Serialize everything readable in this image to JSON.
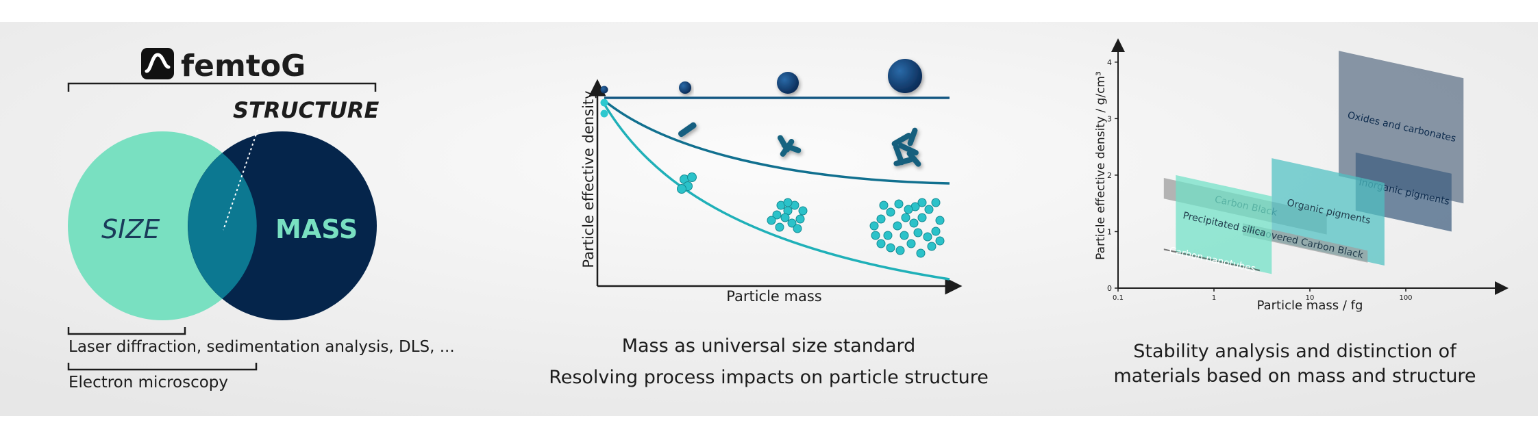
{
  "brand": {
    "name": "femtoG",
    "logo": "femtog-wave-logo"
  },
  "venn": {
    "top_label": "STRUCTURE",
    "left_label": "SIZE",
    "right_label": "MASS",
    "method_1": "Laser diffraction, sedimentation analysis, DLS, ...",
    "method_2": "Electron microscopy",
    "colors": {
      "size": "#79e0c1",
      "mass": "#05254b",
      "overlap": "#0c7891"
    }
  },
  "schematic": {
    "xlabel": "Particle mass",
    "ylabel": "Particle effective density",
    "caption_1": "Mass as universal size standard",
    "caption_2": "Resolving process impacts on particle structure",
    "curves": [
      "spheres",
      "rods",
      "fractal-aggregates"
    ]
  },
  "chart_data": {
    "type": "area",
    "xlabel": "Particle mass / fg",
    "ylabel": "Particle effective density / g/cm³",
    "x_scale": "log",
    "xlim": [
      0.1,
      1000
    ],
    "ylim": [
      0,
      4.3
    ],
    "x_ticks": [
      "0.1",
      "1",
      "10",
      "100"
    ],
    "y_ticks": [
      "0",
      "1",
      "2",
      "3",
      "4"
    ],
    "regions": [
      {
        "name": "Oxides and carbonates",
        "x_range": [
          20,
          400
        ],
        "y_range": [
          1.5,
          4.2
        ],
        "color": "#5d7086"
      },
      {
        "name": "Inorganic pigments",
        "x_range": [
          30,
          300
        ],
        "y_range": [
          1.0,
          2.4
        ],
        "color": "#3f5e80"
      },
      {
        "name": "Carbon Black",
        "x_range": [
          0.3,
          15
        ],
        "y_range": [
          0.95,
          1.95
        ],
        "color": "#9a9a9a"
      },
      {
        "name": "Organic pigments",
        "x_range": [
          4,
          60
        ],
        "y_range": [
          0.4,
          2.3
        ],
        "color": "#4fc0c2"
      },
      {
        "name": "Recovered Carbon Black",
        "x_range": [
          2,
          40
        ],
        "y_range": [
          0.45,
          1.15
        ],
        "color": "#9f9f9f"
      },
      {
        "name": "Precipitated silica",
        "x_range": [
          0.4,
          4
        ],
        "y_range": [
          0.25,
          2.0
        ],
        "color": "#6fe0c6"
      },
      {
        "name": "Carbon nanotubes",
        "x_range": [
          0.3,
          3
        ],
        "y_range": [
          0.3,
          0.7
        ],
        "color": "#4a4a4a"
      }
    ]
  },
  "stability": {
    "caption_1": "Stability analysis and distinction of",
    "caption_2": "materials based on mass and structure"
  }
}
